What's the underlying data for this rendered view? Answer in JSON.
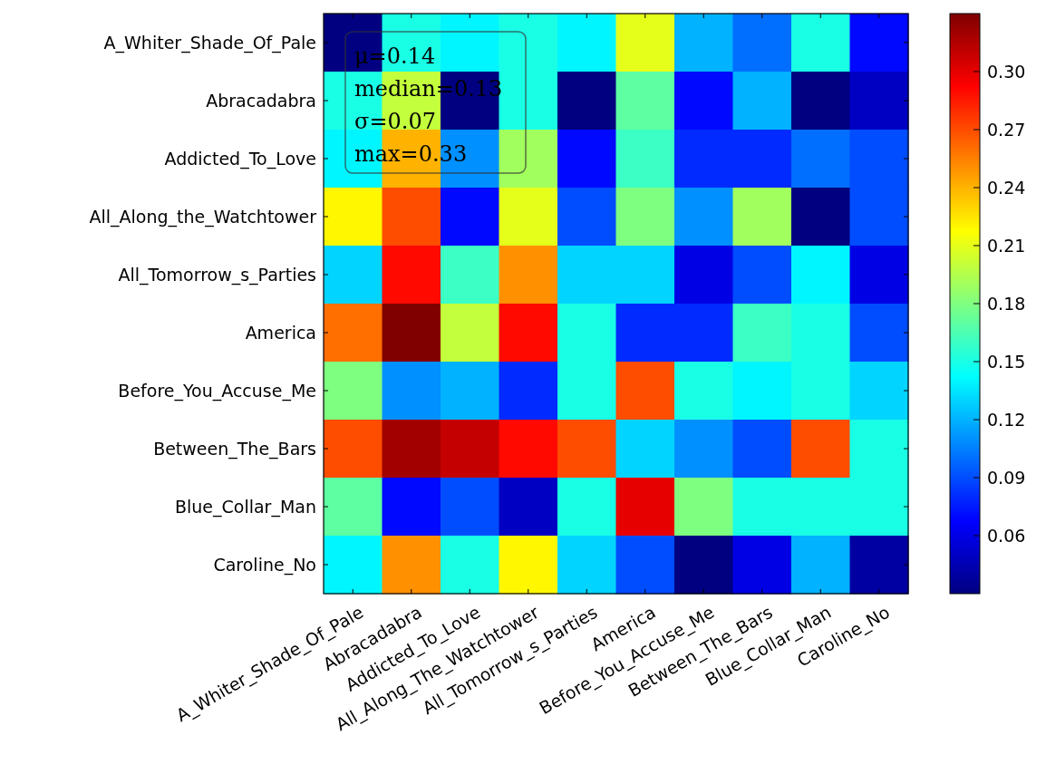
{
  "chart_data": {
    "type": "heatmap",
    "categories": [
      "A_Whiter_Shade_Of_Pale",
      "Abracadabra",
      "Addicted_To_Love",
      "All_Along_The_Watchtower",
      "All_Tomorrow_s_Parties",
      "America",
      "Before_You_Accuse_Me",
      "Between_The_Bars",
      "Blue_Collar_Man",
      "Caroline_No"
    ],
    "y_categories": [
      "A_Whiter_Shade_Of_Pale",
      "Abracadabra",
      "Addicted_To_Love",
      "All_Along_the_Watchtower",
      "All_Tomorrow_s_Parties",
      "America",
      "Before_You_Accuse_Me",
      "Between_The_Bars",
      "Blue_Collar_Man",
      "Caroline_No"
    ],
    "cells": [
      [
        0.03,
        0.15,
        0.14,
        0.15,
        0.14,
        0.21,
        0.12,
        0.1,
        0.15,
        0.07
      ],
      [
        0.15,
        0.2,
        0.03,
        0.15,
        0.03,
        0.17,
        0.07,
        0.12,
        0.03,
        0.05
      ],
      [
        0.14,
        0.24,
        0.11,
        0.19,
        0.07,
        0.16,
        0.08,
        0.08,
        0.1,
        0.09
      ],
      [
        0.22,
        0.27,
        0.07,
        0.21,
        0.09,
        0.18,
        0.11,
        0.19,
        0.03,
        0.09
      ],
      [
        0.13,
        0.29,
        0.16,
        0.25,
        0.13,
        0.13,
        0.06,
        0.09,
        0.14,
        0.06
      ],
      [
        0.26,
        0.33,
        0.2,
        0.29,
        0.15,
        0.08,
        0.08,
        0.16,
        0.15,
        0.09
      ],
      [
        0.18,
        0.11,
        0.12,
        0.08,
        0.15,
        0.27,
        0.15,
        0.14,
        0.15,
        0.13
      ],
      [
        0.27,
        0.32,
        0.31,
        0.29,
        0.27,
        0.13,
        0.11,
        0.09,
        0.27,
        0.15
      ],
      [
        0.17,
        0.07,
        0.09,
        0.05,
        0.15,
        0.3,
        0.18,
        0.15,
        0.15,
        0.15
      ],
      [
        0.14,
        0.25,
        0.15,
        0.22,
        0.13,
        0.09,
        0.03,
        0.06,
        0.12,
        0.04
      ]
    ],
    "clim": [
      0.03,
      0.33
    ],
    "cticks": [
      0.06,
      0.09,
      0.12,
      0.15,
      0.18,
      0.21,
      0.24,
      0.27,
      {
        "value": 0.3,
        "label": "0.30"
      }
    ],
    "annotations": [
      "μ=0.14",
      "median=0.13",
      "σ=0.07",
      "max=0.33"
    ]
  }
}
